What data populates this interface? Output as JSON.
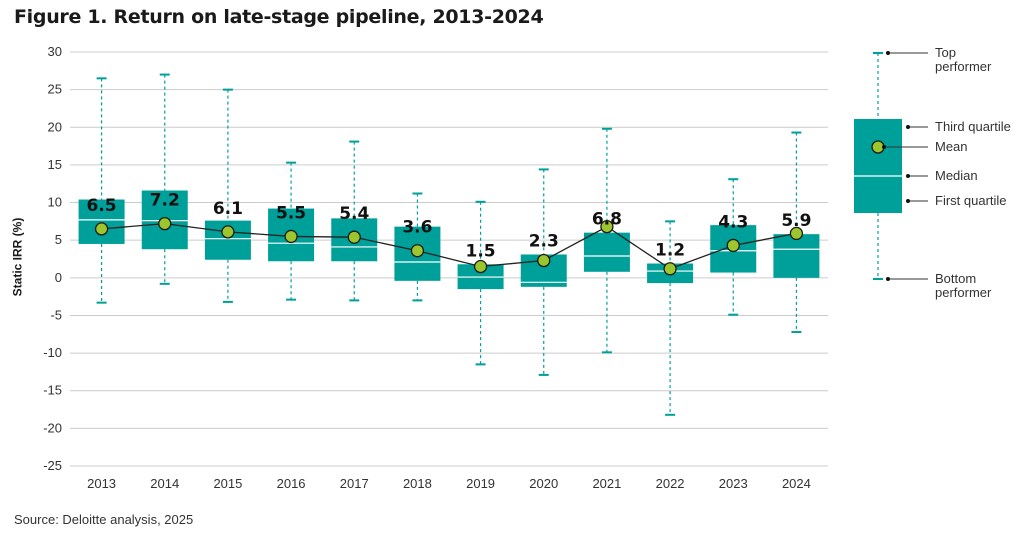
{
  "title": "Figure 1. Return on late-stage pipeline, 2013-2024",
  "source": "Source: Deloitte analysis, 2025",
  "colors": {
    "box": "#00A09A",
    "mean_fill": "#9DC52E",
    "whisker": "#00A09A",
    "line": "#222222",
    "grid": "#cccccc"
  },
  "chart_data": {
    "type": "box",
    "ylabel": "Static IRR (%)",
    "ylim": [
      -25,
      30
    ],
    "yticks": [
      30,
      25,
      20,
      15,
      10,
      5,
      0,
      -5,
      -10,
      -15,
      -20,
      -25
    ],
    "grid": true,
    "categories": [
      "2013",
      "2014",
      "2015",
      "2016",
      "2017",
      "2018",
      "2019",
      "2020",
      "2021",
      "2022",
      "2023",
      "2024"
    ],
    "top": [
      26.5,
      27.0,
      25.0,
      15.3,
      18.1,
      11.2,
      10.1,
      14.4,
      19.8,
      7.5,
      13.1,
      19.3
    ],
    "q3": [
      10.4,
      11.6,
      7.6,
      9.2,
      7.9,
      6.8,
      1.8,
      3.1,
      6.0,
      1.9,
      7.0,
      5.8
    ],
    "median": [
      7.7,
      7.6,
      5.2,
      4.6,
      4.1,
      2.1,
      0.1,
      -0.6,
      2.9,
      0.9,
      3.6,
      3.8
    ],
    "q1": [
      4.5,
      3.8,
      2.4,
      2.2,
      2.2,
      -0.4,
      -1.5,
      -1.2,
      0.8,
      -0.7,
      0.7,
      0.0
    ],
    "bottom": [
      -3.3,
      -0.8,
      -3.2,
      -2.9,
      -3.0,
      -3.0,
      -11.5,
      -12.9,
      -9.9,
      -18.2,
      -4.9,
      -7.2
    ],
    "mean": [
      6.5,
      7.2,
      6.1,
      5.5,
      5.4,
      3.6,
      1.5,
      2.3,
      6.8,
      1.2,
      4.3,
      5.9
    ],
    "mean_labels": [
      "6.5",
      "7.2",
      "6.1",
      "5.5",
      "5.4",
      "3.6",
      "1.5",
      "2.3",
      "6.8",
      "1.2",
      "4.3",
      "5.9"
    ]
  },
  "legend": {
    "top": "Top performer",
    "third_quartile": "Third quartile",
    "mean": "Mean",
    "median": "Median",
    "first_quartile": "First quartile",
    "bottom": "Bottom performer"
  }
}
